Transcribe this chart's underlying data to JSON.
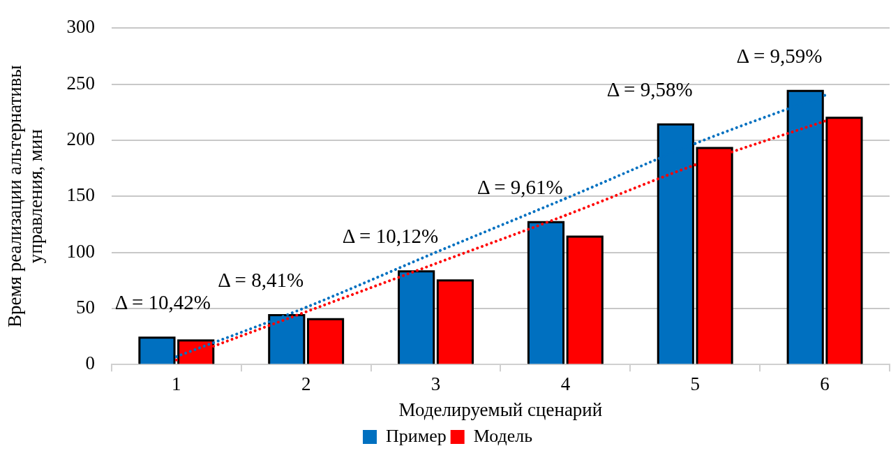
{
  "chart_data": {
    "type": "bar",
    "xlabel": "Моделируемый сценарий",
    "ylabel": "Время реализации альтернативы\nуправления, мин",
    "categories": [
      "1",
      "2",
      "3",
      "4",
      "5",
      "6"
    ],
    "series": [
      {
        "name": "Пример",
        "color": "#0070c0",
        "values": [
          24,
          44,
          83,
          127,
          214,
          244
        ]
      },
      {
        "name": "Модель",
        "color": "#ff0000",
        "values": [
          21.5,
          40.5,
          75,
          114,
          193,
          220
        ]
      },
      {
        "type": "line",
        "color": "#0070c0",
        "line_style": "dotted",
        "values": [
          7,
          51,
          100,
          148,
          197,
          240
        ]
      },
      {
        "type": "line",
        "color": "#ff0000",
        "line_style": "dotted",
        "values": [
          4,
          47,
          90,
          133,
          178,
          217
        ]
      }
    ],
    "ylim": [
      0,
      300
    ],
    "yticks": [
      0,
      50,
      100,
      150,
      200,
      250,
      300
    ],
    "grid": "y",
    "legend": "bottom",
    "annotations": [
      "Δ = 10,42%",
      "Δ = 8,41%",
      "Δ = 10,12%",
      "Δ = 9,61%",
      "Δ = 9,58%",
      "Δ = 9,59%"
    ]
  }
}
